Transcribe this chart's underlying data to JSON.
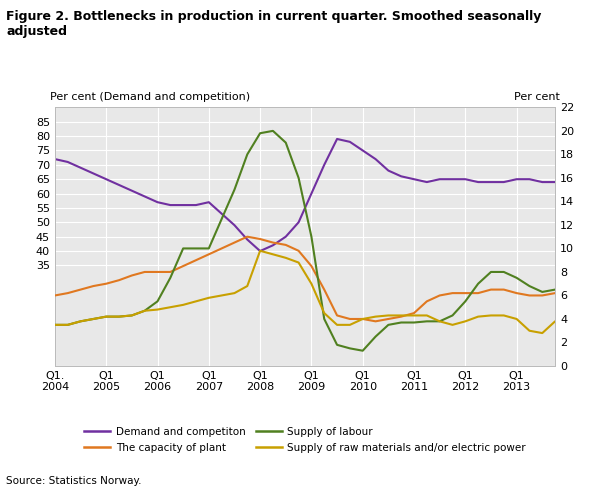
{
  "title": "Figure 2. Bottlenecks in production in current quarter. Smoothed seasonally\nadjusted",
  "ylabel_left": "Per cent (Demand and competition)",
  "ylabel_right": "Per cent",
  "source": "Source: Statistics Norway.",
  "background_color": "#ffffff",
  "plot_bg_color": "#e8e8e8",
  "grid_color": "#ffffff",
  "xlim": [
    0,
    39
  ],
  "ylim_left": [
    0,
    90
  ],
  "ylim_right": [
    0,
    22
  ],
  "xtick_positions": [
    0,
    4,
    8,
    12,
    16,
    20,
    24,
    28,
    32,
    36
  ],
  "xtick_labels": [
    "Q1.\n2004",
    "Q1\n2005",
    "Q1\n2006",
    "Q1\n2007",
    "Q1\n2008",
    "Q1\n2009",
    "Q1\n2010",
    "Q1\n2011",
    "Q1\n2012",
    "Q1\n2013"
  ],
  "yticks_left": [
    0,
    35,
    40,
    45,
    50,
    55,
    60,
    65,
    70,
    75,
    80,
    85
  ],
  "ytick_left_labels": [
    "",
    "35",
    "40",
    "45",
    "50",
    "55",
    "60",
    "65",
    "70",
    "75",
    "80",
    "85"
  ],
  "yticks_right": [
    0,
    2,
    4,
    6,
    8,
    10,
    12,
    14,
    16,
    18,
    20,
    22
  ],
  "ytick_right_labels": [
    "0",
    "2",
    "4",
    "6",
    "8",
    "10",
    "12",
    "14",
    "16",
    "18",
    "20",
    "22"
  ],
  "demand_color": "#7030a0",
  "capacity_color": "#e07820",
  "labour_color": "#508020",
  "rawmat_color": "#c8a000",
  "demand_y": [
    72,
    71,
    69,
    67,
    65,
    63,
    61,
    59,
    57,
    56,
    56,
    56,
    57,
    53,
    49,
    44,
    40,
    42,
    45,
    50,
    60,
    70,
    79,
    78,
    75,
    72,
    68,
    66,
    65,
    64,
    65,
    65,
    65,
    64,
    64,
    64,
    65,
    65,
    64,
    64
  ],
  "capacity_y_right": [
    6.0,
    6.2,
    6.5,
    6.8,
    7.0,
    7.3,
    7.7,
    8.0,
    8.0,
    8.0,
    8.5,
    9.0,
    9.5,
    10.0,
    10.5,
    11.0,
    10.8,
    10.5,
    10.3,
    9.8,
    8.5,
    6.5,
    4.3,
    4.0,
    4.0,
    3.8,
    4.0,
    4.2,
    4.5,
    5.5,
    6.0,
    6.2,
    6.2,
    6.2,
    6.5,
    6.5,
    6.2,
    6.0,
    6.0,
    6.2
  ],
  "labour_y_right": [
    3.5,
    3.5,
    3.8,
    4.0,
    4.2,
    4.2,
    4.3,
    4.7,
    5.5,
    7.5,
    10.0,
    10.0,
    10.0,
    12.5,
    15.0,
    18.0,
    19.8,
    20.0,
    19.0,
    16.0,
    11.0,
    4.0,
    1.8,
    1.5,
    1.3,
    2.5,
    3.5,
    3.7,
    3.7,
    3.8,
    3.8,
    4.3,
    5.5,
    7.0,
    8.0,
    8.0,
    7.5,
    6.8,
    6.3,
    6.5
  ],
  "rawmat_y_right": [
    3.5,
    3.5,
    3.8,
    4.0,
    4.2,
    4.2,
    4.3,
    4.7,
    4.8,
    5.0,
    5.2,
    5.5,
    5.8,
    6.0,
    6.2,
    6.8,
    9.8,
    9.5,
    9.2,
    8.8,
    7.0,
    4.5,
    3.5,
    3.5,
    4.0,
    4.2,
    4.3,
    4.3,
    4.3,
    4.3,
    3.8,
    3.5,
    3.8,
    4.2,
    4.3,
    4.3,
    4.0,
    3.0,
    2.8,
    3.8
  ],
  "legend_items": [
    {
      "label": "Demand and competiton",
      "color": "#7030a0"
    },
    {
      "label": "The capacity of plant",
      "color": "#e07820"
    },
    {
      "label": "Supply of labour",
      "color": "#508020"
    },
    {
      "label": "Supply of raw materials and/or electric power",
      "color": "#c8a000"
    }
  ]
}
